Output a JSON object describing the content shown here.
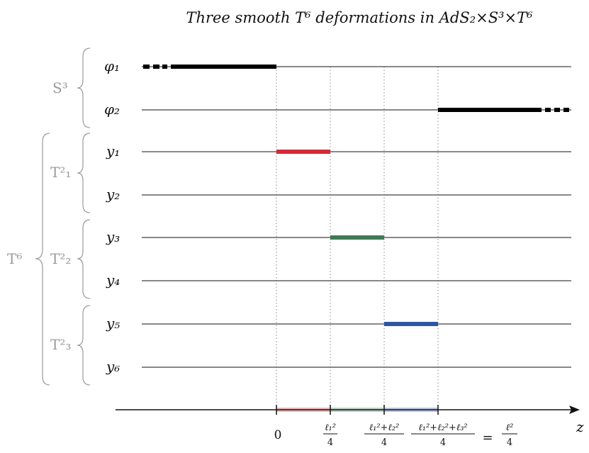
{
  "title": "Three smooth T⁶ deformations in AdS₂×S³×T⁶",
  "rows": [
    {
      "label": "φ₁"
    },
    {
      "label": "φ₂"
    },
    {
      "label": "y₁"
    },
    {
      "label": "y₂"
    },
    {
      "label": "y₃"
    },
    {
      "label": "y₄"
    },
    {
      "label": "y₅"
    },
    {
      "label": "y₆"
    }
  ],
  "groups": {
    "s3": "S³",
    "t6": "T⁶",
    "t2_1": "T²₁",
    "t2_2": "T²₂",
    "t2_3": "T²₃"
  },
  "axis": {
    "label": "z",
    "ticks": [
      {
        "text": "0"
      },
      {
        "num": "ℓ₁²",
        "den": "4"
      },
      {
        "num": "ℓ₁²+ℓ₂²",
        "den": "4"
      },
      {
        "num": "ℓ₁²+ℓ₂²+ℓ₃²",
        "den": "4",
        "eq": "=",
        "num2": "ℓ²",
        "den2": "4"
      }
    ]
  },
  "colors": {
    "red": "#d42a36",
    "green": "#3f7a55",
    "blue": "#2e57a3",
    "label_gray": "#9a9a9a",
    "dotted": "#888888"
  }
}
